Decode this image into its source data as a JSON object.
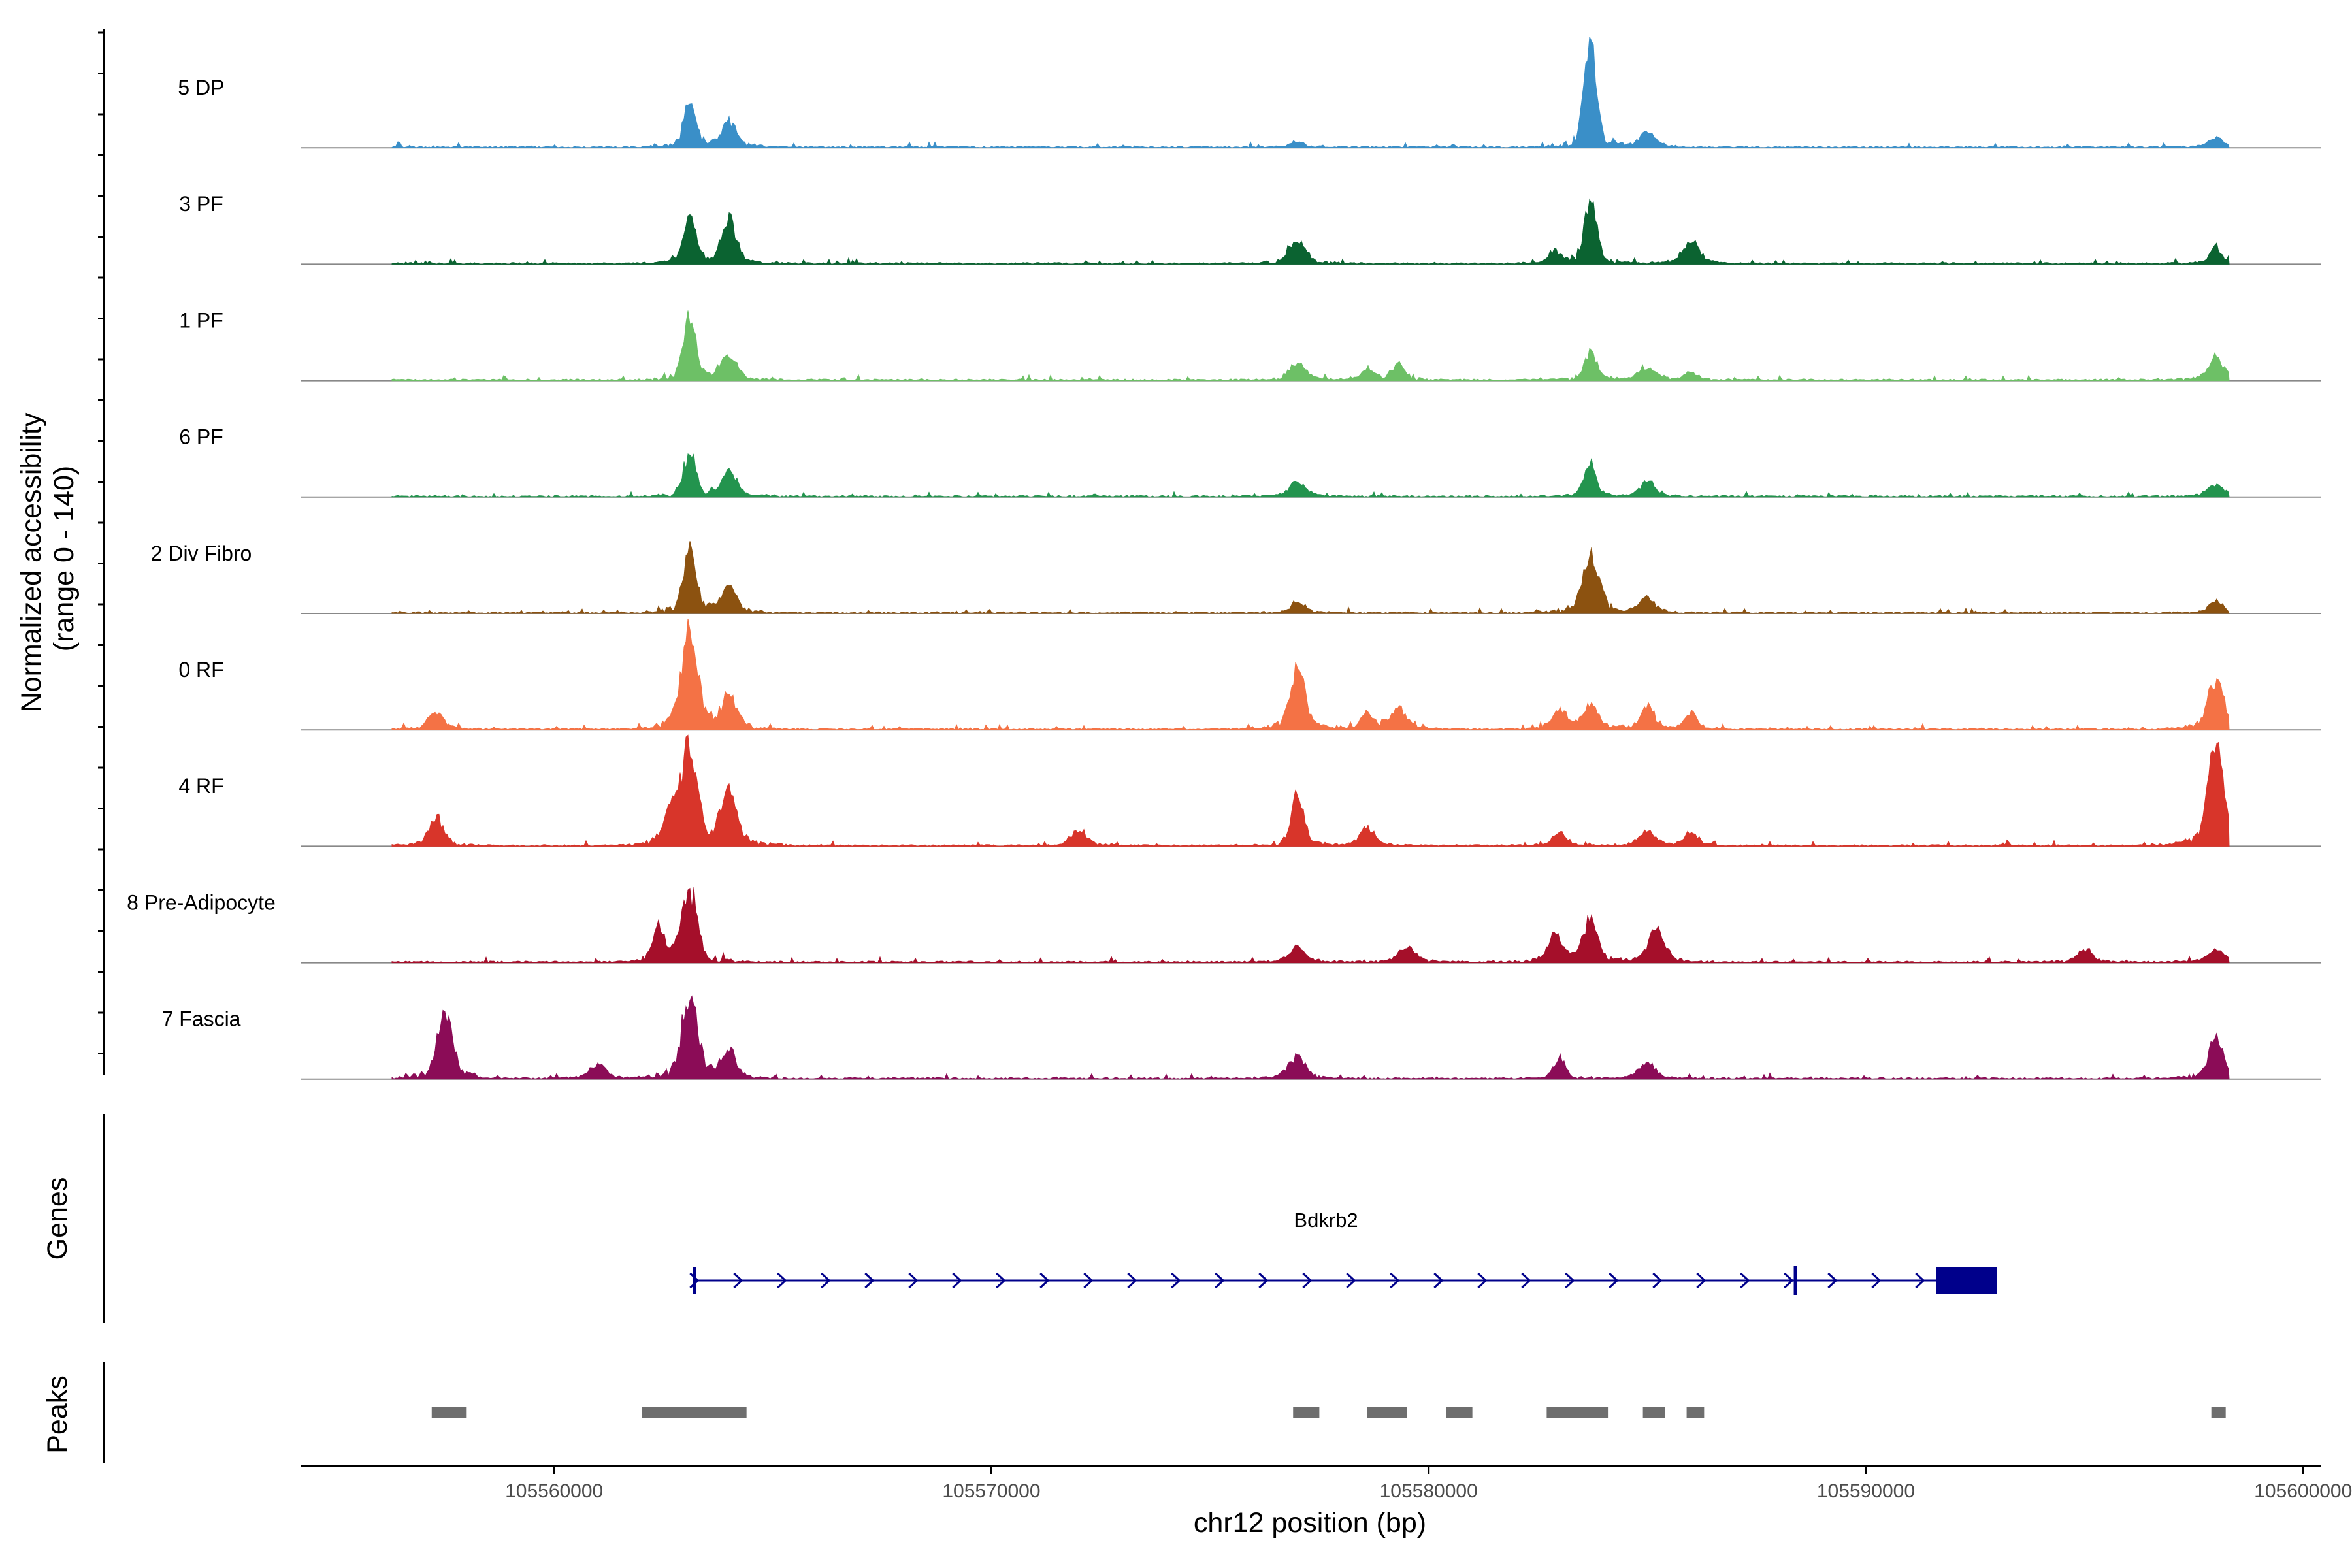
{
  "chart_data": {
    "type": "coverage",
    "title": "",
    "xlabel": "chr12 position (bp)",
    "ylabel": "Normalized accessibility\n(range 0 - 140)",
    "ylabel_lines": [
      "Normalized accessibility",
      "(range 0 - 140)"
    ],
    "ylim": [
      0,
      140
    ],
    "xlim": [
      105554200,
      105600400
    ],
    "x_ticks": [
      105560000,
      105570000,
      105580000,
      105590000,
      105600000
    ],
    "x_tick_labels": [
      "105560000",
      "105570000",
      "105580000",
      "105590000",
      "105600000"
    ],
    "genes_label": "Genes",
    "peaks_label": "Peaks",
    "tracks": [
      {
        "name": "5 DP",
        "color": "#3A8FC8",
        "peaks": [
          [
            105563100,
            55
          ],
          [
            105564000,
            32
          ],
          [
            105583700,
            125
          ],
          [
            105585000,
            18
          ],
          [
            105577000,
            6
          ],
          [
            105598000,
            12
          ]
        ]
      },
      {
        "name": "3 PF",
        "color": "#0B6331",
        "peaks": [
          [
            105563100,
            55
          ],
          [
            105564000,
            52
          ],
          [
            105577000,
            28
          ],
          [
            105583700,
            80
          ],
          [
            105586000,
            28
          ],
          [
            105582900,
            15
          ],
          [
            105598000,
            20
          ]
        ]
      },
      {
        "name": "1 PF",
        "color": "#6DC066",
        "peaks": [
          [
            105563100,
            80
          ],
          [
            105564000,
            28
          ],
          [
            105577000,
            22
          ],
          [
            105579300,
            20
          ],
          [
            105578600,
            12
          ],
          [
            105583700,
            35
          ],
          [
            105585000,
            14
          ],
          [
            105586000,
            10
          ],
          [
            105598000,
            28
          ]
        ]
      },
      {
        "name": "6 PF",
        "color": "#23944E",
        "peaks": [
          [
            105563100,
            55
          ],
          [
            105564000,
            28
          ],
          [
            105577000,
            18
          ],
          [
            105583700,
            40
          ],
          [
            105585000,
            20
          ],
          [
            105598000,
            14
          ]
        ]
      },
      {
        "name": "2 Div Fibro",
        "color": "#8C5210",
        "peaks": [
          [
            105563100,
            85
          ],
          [
            105564000,
            32
          ],
          [
            105577000,
            15
          ],
          [
            105583700,
            68
          ],
          [
            105585000,
            18
          ],
          [
            105598000,
            15
          ]
        ]
      },
      {
        "name": "0 RF",
        "color": "#F47245",
        "peaks": [
          [
            105563100,
            118
          ],
          [
            105564000,
            38
          ],
          [
            105557300,
            22
          ],
          [
            105577000,
            72
          ],
          [
            105578600,
            20
          ],
          [
            105579300,
            24
          ],
          [
            105583000,
            22
          ],
          [
            105583700,
            28
          ],
          [
            105585000,
            26
          ],
          [
            105586000,
            20
          ],
          [
            105598000,
            58
          ]
        ]
      },
      {
        "name": "4 RF",
        "color": "#D8352A",
        "peaks": [
          [
            105563100,
            122
          ],
          [
            105562700,
            42
          ],
          [
            105564000,
            68
          ],
          [
            105557300,
            32
          ],
          [
            105577000,
            60
          ],
          [
            105578600,
            22
          ],
          [
            105572000,
            18
          ],
          [
            105583000,
            16
          ],
          [
            105585000,
            18
          ],
          [
            105586000,
            16
          ],
          [
            105598000,
            118
          ]
        ]
      },
      {
        "name": "8 Pre-Adipocyte",
        "color": "#A50F2A",
        "peaks": [
          [
            105563100,
            92
          ],
          [
            105562400,
            40
          ],
          [
            105583700,
            52
          ],
          [
            105582900,
            32
          ],
          [
            105585200,
            38
          ],
          [
            105579500,
            18
          ],
          [
            105577000,
            18
          ],
          [
            105595000,
            16
          ],
          [
            105598000,
            14
          ]
        ]
      },
      {
        "name": "7 Fascia",
        "color": "#8B0C57",
        "peaks": [
          [
            105563100,
            98
          ],
          [
            105557500,
            82
          ],
          [
            105564000,
            32
          ],
          [
            105561000,
            18
          ],
          [
            105577000,
            28
          ],
          [
            105583000,
            25
          ],
          [
            105585000,
            18
          ],
          [
            105598000,
            52
          ]
        ]
      }
    ],
    "gene": {
      "name": "Bdkrb2",
      "start": 105563200,
      "end": 105593000,
      "exons": [
        [
          105563200,
          105563210
        ],
        [
          105588350,
          105588400
        ],
        [
          105591600,
          105593000
        ]
      ],
      "strand": "+"
    },
    "peak_regions": [
      [
        105557200,
        105558000
      ],
      [
        105562000,
        105564400
      ],
      [
        105576900,
        105577500
      ],
      [
        105578600,
        105579500
      ],
      [
        105580400,
        105581000
      ],
      [
        105582700,
        105584100
      ],
      [
        105584900,
        105585400
      ],
      [
        105585900,
        105586300
      ],
      [
        105597900,
        105598200
      ]
    ]
  }
}
